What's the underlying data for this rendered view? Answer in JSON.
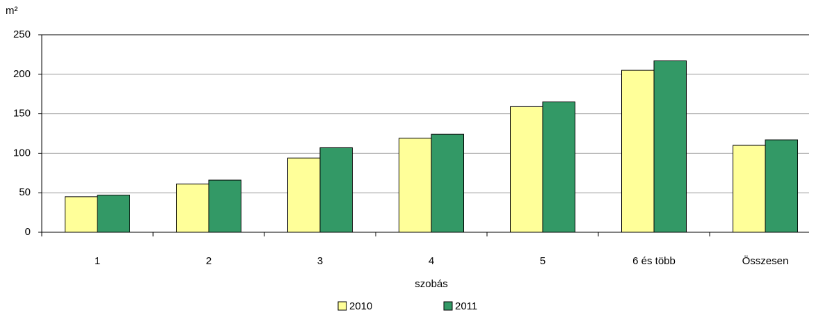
{
  "chart_data": {
    "type": "bar",
    "y_label": "m²",
    "x_label": "szobás",
    "categories": [
      "1",
      "2",
      "3",
      "4",
      "5",
      "6 és több",
      "Összesen"
    ],
    "series": [
      {
        "name": "2010",
        "color": "#ffff99",
        "values": [
          45,
          61,
          94,
          119,
          159,
          205,
          110
        ]
      },
      {
        "name": "2011",
        "color": "#339966",
        "values": [
          47,
          66,
          107,
          124,
          165,
          217,
          117
        ]
      }
    ],
    "ylim": [
      0,
      250
    ],
    "yticks": [
      0,
      50,
      100,
      150,
      200,
      250
    ],
    "grid": true,
    "legend": "bottom"
  }
}
